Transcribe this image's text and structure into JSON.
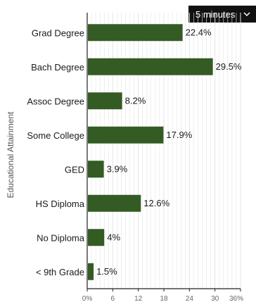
{
  "range_select": {
    "selected": "5 minutes",
    "icon": "chevron-down-icon"
  },
  "chart_data": {
    "type": "bar",
    "orientation": "horizontal",
    "ylabel": "Educational Attainment",
    "xlabel": "",
    "categories": [
      "Grad Degree",
      "Bach Degree",
      "Assoc Degree",
      "Some College",
      "GED",
      "HS Diploma",
      "No Diploma",
      "< 9th Grade"
    ],
    "values": [
      22.4,
      29.5,
      8.2,
      17.9,
      3.9,
      12.6,
      4,
      1.5
    ],
    "value_labels": [
      "22.4%",
      "29.5%",
      "8.2%",
      "17.9%",
      "3.9%",
      "12.6%",
      "4%",
      "1.5%"
    ],
    "xlim": [
      0,
      36
    ],
    "xticks": [
      0,
      6,
      12,
      18,
      24,
      30,
      36
    ],
    "xtick_labels": [
      "0%",
      "6",
      "12",
      "18",
      "24",
      "30",
      "36%"
    ],
    "grid": true,
    "colors": {
      "bar": "#345b24",
      "grid": "#e4e4e4",
      "axis": "#222222"
    }
  }
}
